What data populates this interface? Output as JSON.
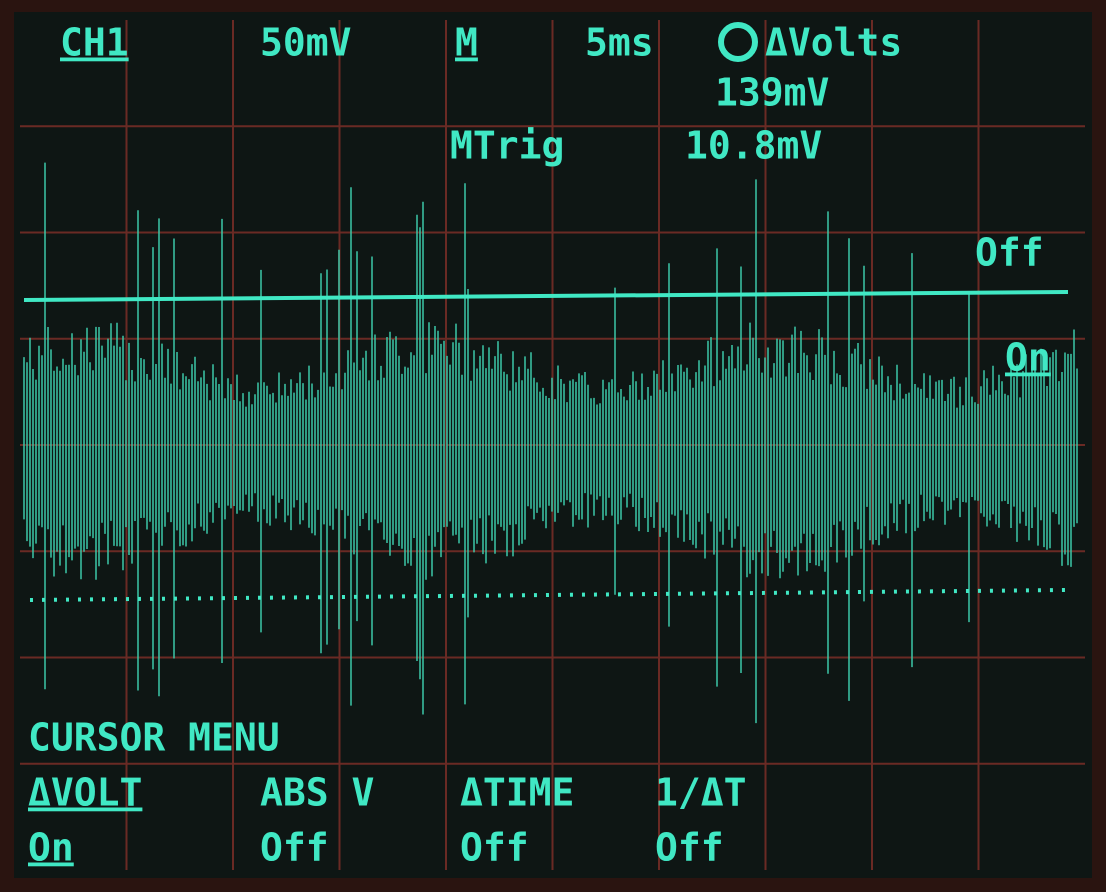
{
  "status": {
    "channel": "CH1",
    "volts_per_div": "50mV",
    "timebase_mode": "M",
    "time_per_div": "5ms",
    "cursor_function": "ΔVolts",
    "cursor_reading": "139mV",
    "trigger_label": "MTrig",
    "trigger_level": "10.8mV"
  },
  "cursor_labels": {
    "upper": "Off",
    "lower": "On"
  },
  "menu": {
    "title": "CURSOR MENU",
    "items": [
      {
        "label": "ΔVOLT",
        "state": "On"
      },
      {
        "label": "ABS V",
        "state": "Off"
      },
      {
        "label": "ΔTIME",
        "state": "Off"
      },
      {
        "label": "1/ΔT",
        "state": "Off"
      }
    ]
  }
}
